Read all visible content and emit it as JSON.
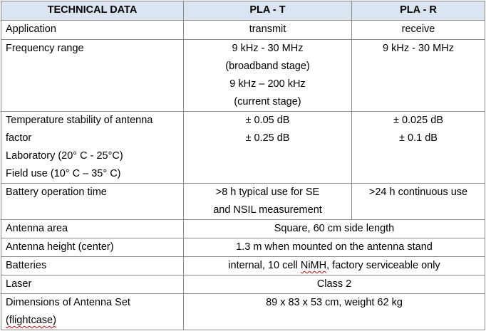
{
  "header": {
    "col1": "TECHNICAL DATA",
    "col2": "PLA - T",
    "col3": "PLA - R"
  },
  "rows": {
    "application": {
      "label": "Application",
      "t": "transmit",
      "r": "receive"
    },
    "frequency": {
      "label": "Frequency range",
      "t_lines": [
        "9 kHz - 30 MHz",
        "(broadband stage)",
        "9 kHz – 200 kHz",
        "(current stage)"
      ],
      "r": "9 kHz - 30 MHz"
    },
    "temperature": {
      "label_lines": [
        "Temperature stability of antenna",
        "factor",
        "Laboratory (20° C - 25°C)",
        "Field use (10° C – 35° C)"
      ],
      "t_lines": [
        "± 0.05 dB",
        "± 0.25 dB"
      ],
      "r_lines": [
        "± 0.025 dB",
        "± 0.1 dB"
      ]
    },
    "battery_time": {
      "label": "Battery operation time",
      "t_lines": [
        ">8 h typical use for SE",
        "and NSIL measurement"
      ],
      "r": ">24 h continuous use"
    },
    "antenna_area": {
      "label": "Antenna area",
      "value": "Square, 60 cm side length"
    },
    "antenna_height": {
      "label": "Antenna height (center)",
      "value": "1.3 m when mounted on the antenna stand"
    },
    "batteries": {
      "label": "Batteries",
      "value_pre": "internal, 10 cell ",
      "value_wavy": "NiMH",
      "value_post": ", factory serviceable only"
    },
    "laser": {
      "label": "Laser",
      "value": "Class 2"
    },
    "dimensions": {
      "label_line1": "Dimensions of Antenna Set",
      "label_line2": "(flightcase)",
      "value": "89 x 83 x 53 cm, weight 62 kg"
    }
  }
}
